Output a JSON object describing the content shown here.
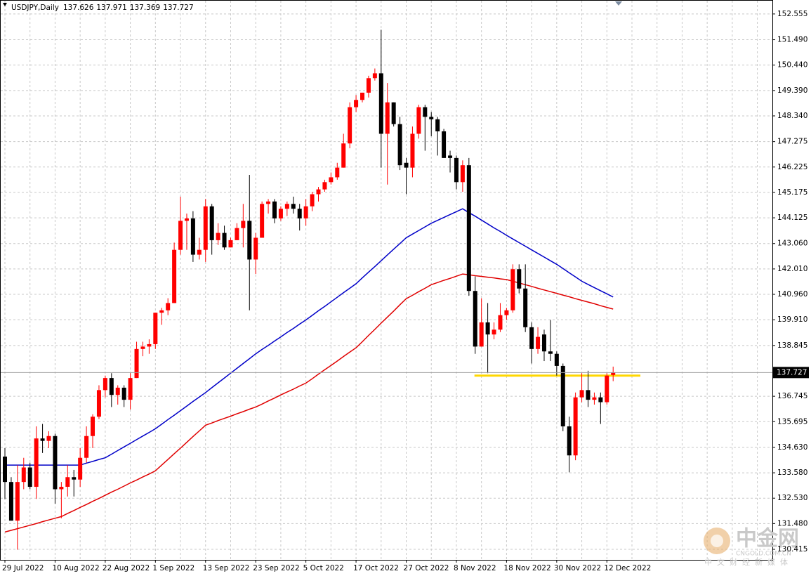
{
  "header": {
    "title": "USDJPY,Daily"
  },
  "chart_data": {
    "type": "candlestick",
    "categories": [
      "29 Jul 2022",
      null,
      null,
      null,
      null,
      null,
      null,
      null,
      "10 Aug 2022",
      null,
      null,
      null,
      null,
      null,
      null,
      null,
      "22 Aug 2022",
      null,
      null,
      null,
      null,
      null,
      null,
      null,
      "1 Sep 2022",
      null,
      null,
      null,
      null,
      null,
      null,
      null,
      "13 Sep 2022",
      null,
      null,
      null,
      null,
      null,
      null,
      null,
      "23 Sep 2022",
      null,
      null,
      null,
      null,
      null,
      null,
      null,
      "5 Oct 2022",
      null,
      null,
      null,
      null,
      null,
      null,
      null,
      "17 Oct 2022",
      null,
      null,
      null,
      null,
      null,
      null,
      null,
      "27 Oct 2022",
      null,
      null,
      null,
      null,
      null,
      null,
      null,
      "8 Nov 2022",
      null,
      null,
      null,
      null,
      null,
      null,
      null,
      "18 Nov 2022",
      null,
      null,
      null,
      null,
      null,
      null,
      null,
      "30 Nov 2022",
      null,
      null,
      null,
      null,
      null,
      null,
      null,
      "12 Dec 2022",
      null
    ],
    "open": [
      134.25,
      133.2,
      131.6,
      133.2,
      133.8,
      133.0,
      135.0,
      134.9,
      135.1,
      132.9,
      133.0,
      133.4,
      133.3,
      134.2,
      135.1,
      135.9,
      137.0,
      137.5,
      136.8,
      137.1,
      136.6,
      137.5,
      138.7,
      138.8,
      138.9,
      140.2,
      140.3,
      140.6,
      142.8,
      144.0,
      144.1,
      142.6,
      142.8,
      144.6,
      143.2,
      143.5,
      142.9,
      143.2,
      143.7,
      144.0,
      142.4,
      143.3,
      144.7,
      144.8,
      144.1,
      144.5,
      144.7,
      144.5,
      144.1,
      144.6,
      145.1,
      145.3,
      145.6,
      145.8,
      146.2,
      147.2,
      148.7,
      149.0,
      149.3,
      149.9,
      150.1,
      147.6,
      148.9,
      148.0,
      146.4,
      146.2,
      147.6,
      148.7,
      148.3,
      148.2,
      147.7,
      146.7,
      146.6,
      145.6,
      146.3,
      141.1,
      138.8,
      139.8,
      139.3,
      139.5,
      140.1,
      140.3,
      142.0,
      141.2,
      139.6,
      138.7,
      139.3,
      138.6,
      138.5,
      138.0,
      135.5,
      134.3,
      136.7,
      137.0,
      136.6,
      136.7,
      136.5,
      137.626
    ],
    "high": [
      134.6,
      133.4,
      133.9,
      134.2,
      134.0,
      135.5,
      135.6,
      135.3,
      135.2,
      133.2,
      133.9,
      133.7,
      134.6,
      135.5,
      136.0,
      137.2,
      137.6,
      137.7,
      137.2,
      137.2,
      137.7,
      139.0,
      139.0,
      139.1,
      140.2,
      140.4,
      140.8,
      143.1,
      145.0,
      144.3,
      144.4,
      143.3,
      144.9,
      144.7,
      143.9,
      143.8,
      143.3,
      143.9,
      144.7,
      145.9,
      143.5,
      144.8,
      144.9,
      144.9,
      144.6,
      144.8,
      145.0,
      144.7,
      144.9,
      145.2,
      145.4,
      145.7,
      146.0,
      146.4,
      147.6,
      148.9,
      149.2,
      149.3,
      150.0,
      150.3,
      151.9,
      149.7,
      148.9,
      148.3,
      146.6,
      147.9,
      148.8,
      148.8,
      148.5,
      148.3,
      147.8,
      146.9,
      146.7,
      146.5,
      146.6,
      141.7,
      140.8,
      140.6,
      139.8,
      140.6,
      140.4,
      142.2,
      142.2,
      142.2,
      139.8,
      139.6,
      139.5,
      139.9,
      138.6,
      138.1,
      135.9,
      136.9,
      137.7,
      137.8,
      136.9,
      136.9,
      137.7,
      137.971
    ],
    "low": [
      132.5,
      131.6,
      130.4,
      132.9,
      132.9,
      132.5,
      134.4,
      134.6,
      132.3,
      131.7,
      132.6,
      132.6,
      133.0,
      134.0,
      134.6,
      135.8,
      136.7,
      136.3,
      136.4,
      136.3,
      136.2,
      137.5,
      138.4,
      138.5,
      138.7,
      139.7,
      140.1,
      140.6,
      142.6,
      142.8,
      142.3,
      142.4,
      142.3,
      142.6,
      143.0,
      142.8,
      142.9,
      143.2,
      142.9,
      140.3,
      141.8,
      143.3,
      144.3,
      143.9,
      144.0,
      144.2,
      144.3,
      143.6,
      143.8,
      144.4,
      144.8,
      145.2,
      145.5,
      145.7,
      146.2,
      147.0,
      148.5,
      148.9,
      149.1,
      149.8,
      146.2,
      145.5,
      147.9,
      146.1,
      145.1,
      145.8,
      147.4,
      146.9,
      147.5,
      146.7,
      146.6,
      146.0,
      145.3,
      145.2,
      140.9,
      138.5,
      138.8,
      137.7,
      139.1,
      139.4,
      139.9,
      140.2,
      141.0,
      139.4,
      138.1,
      138.5,
      138.2,
      138.2,
      137.6,
      135.3,
      133.6,
      134.1,
      136.5,
      136.3,
      136.4,
      135.6,
      136.4,
      137.369
    ],
    "close": [
      133.2,
      131.6,
      133.2,
      133.8,
      133.0,
      135.0,
      134.9,
      135.1,
      132.9,
      133.0,
      133.4,
      133.3,
      134.2,
      135.1,
      135.9,
      137.0,
      137.5,
      136.8,
      137.1,
      136.6,
      137.5,
      138.7,
      138.8,
      138.9,
      140.2,
      140.3,
      140.6,
      142.8,
      144.0,
      144.1,
      142.6,
      142.8,
      144.6,
      143.2,
      143.5,
      142.9,
      143.2,
      143.7,
      144.0,
      142.4,
      143.3,
      144.7,
      144.8,
      144.1,
      144.5,
      144.7,
      144.5,
      144.1,
      144.6,
      145.1,
      145.3,
      145.6,
      145.8,
      146.2,
      147.2,
      148.7,
      149.0,
      149.3,
      149.9,
      150.1,
      147.6,
      148.9,
      148.0,
      146.3,
      146.2,
      147.6,
      148.7,
      148.3,
      148.2,
      147.7,
      146.6,
      146.6,
      145.6,
      146.3,
      141.1,
      138.8,
      139.8,
      139.3,
      139.5,
      140.1,
      140.3,
      142.0,
      141.2,
      139.6,
      138.7,
      139.2,
      138.6,
      138.5,
      138.0,
      135.5,
      134.3,
      136.7,
      137.0,
      136.6,
      136.7,
      136.5,
      137.6,
      137.727
    ],
    "up_color": "#ff0000",
    "down_color": "#000000",
    "lines": [
      {
        "color": "#0000c8",
        "values": [
          133.9,
          133.9,
          133.9,
          133.9,
          133.9,
          133.9,
          133.9,
          133.9,
          133.9,
          133.9,
          133.9,
          133.9,
          133.9,
          133.98,
          134.05,
          134.13,
          134.2,
          134.35,
          134.5,
          134.65,
          134.8,
          134.95,
          135.1,
          135.25,
          135.4,
          135.59,
          135.78,
          135.96,
          136.15,
          136.34,
          136.53,
          136.71,
          136.9,
          137.1,
          137.3,
          137.5,
          137.7,
          137.9,
          138.1,
          138.3,
          138.5,
          138.68,
          138.85,
          139.03,
          139.2,
          139.38,
          139.55,
          139.73,
          139.9,
          140.09,
          140.28,
          140.46,
          140.65,
          140.84,
          141.03,
          141.21,
          141.4,
          141.64,
          141.88,
          142.11,
          142.35,
          142.59,
          142.83,
          143.06,
          143.3,
          143.45,
          143.6,
          143.75,
          143.9,
          144.02,
          144.14,
          144.26,
          144.38,
          144.5,
          144.34,
          144.19,
          144.03,
          143.87,
          143.71,
          143.56,
          143.4,
          143.25,
          143.1,
          142.95,
          142.8,
          142.65,
          142.5,
          142.35,
          142.2,
          142.03,
          141.85,
          141.68,
          141.5,
          141.37,
          141.24,
          141.11,
          140.98,
          140.85
        ]
      },
      {
        "color": "#e00000",
        "values": [
          131.13,
          131.2,
          131.27,
          131.34,
          131.41,
          131.48,
          131.56,
          131.63,
          131.7,
          131.77,
          131.9,
          132.02,
          132.15,
          132.27,
          132.4,
          132.52,
          132.65,
          132.78,
          132.9,
          133.03,
          133.16,
          133.28,
          133.41,
          133.53,
          133.66,
          133.9,
          134.13,
          134.37,
          134.6,
          134.84,
          135.08,
          135.31,
          135.55,
          135.64,
          135.74,
          135.83,
          135.92,
          136.02,
          136.11,
          136.21,
          136.3,
          136.42,
          136.55,
          136.67,
          136.8,
          136.92,
          137.04,
          137.17,
          137.29,
          137.47,
          137.66,
          137.84,
          138.02,
          138.2,
          138.39,
          138.57,
          138.75,
          139.0,
          139.26,
          139.51,
          139.77,
          140.02,
          140.27,
          140.53,
          140.78,
          140.92,
          141.07,
          141.21,
          141.36,
          141.45,
          141.54,
          141.62,
          141.71,
          141.8,
          141.77,
          141.73,
          141.7,
          141.67,
          141.64,
          141.6,
          141.57,
          141.5,
          141.43,
          141.36,
          141.29,
          141.21,
          141.14,
          141.07,
          141.0,
          140.93,
          140.86,
          140.78,
          140.71,
          140.64,
          140.57,
          140.49,
          140.42,
          140.35
        ]
      }
    ],
    "hline": {
      "value": 137.6,
      "color": "#ffd700"
    },
    "ylim": [
      129.98,
      152.9
    ],
    "yticks": [
      152.555,
      {
        "value": 151.49,
        "label": "151.490"
      },
      {
        "value": 150.44,
        "label": "150.440"
      },
      {
        "value": 149.39,
        "label": "149.390"
      },
      {
        "value": 148.34,
        "label": "148.340"
      },
      147.275,
      146.225,
      145.175,
      144.125,
      {
        "value": 143.06,
        "label": "143.060"
      },
      {
        "value": 142.01,
        "label": "142.010"
      },
      {
        "value": 140.96,
        "label": "140.960"
      },
      {
        "value": 139.91,
        "label": "139.910"
      },
      138.845,
      136.745,
      135.695,
      {
        "value": 134.63,
        "label": "134.630"
      },
      {
        "value": 133.58,
        "label": "133.580"
      },
      {
        "value": 132.53,
        "label": "132.530"
      },
      {
        "value": 131.48,
        "label": "131.480"
      },
      130.415
    ],
    "grid": true
  },
  "watermark": {
    "brand": "中金网",
    "site": "CNGOLD.COM.CN",
    "slogan": "中文财经新媒体"
  }
}
